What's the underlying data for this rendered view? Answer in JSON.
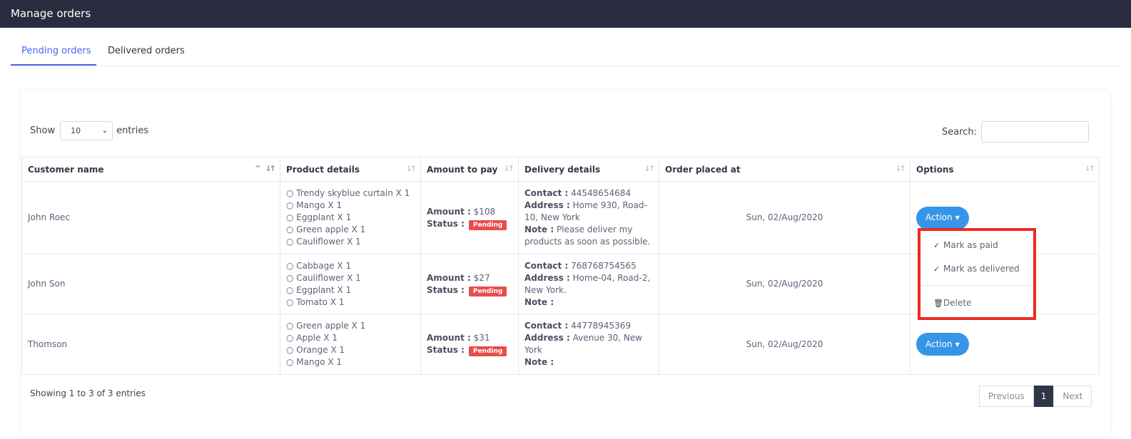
{
  "header": {
    "title": "Manage orders"
  },
  "tabs": [
    {
      "label": "Pending orders",
      "active": true
    },
    {
      "label": "Delivered orders",
      "active": false
    }
  ],
  "controls": {
    "show_label": "Show",
    "entries_value": "10",
    "entries_label": "entries",
    "search_label": "Search:"
  },
  "table": {
    "columns": [
      "Customer name",
      "Product details",
      "Amount to pay",
      "Delivery details",
      "Order placed at",
      "Options"
    ],
    "amount_label": "Amount :",
    "status_label": "Status :",
    "contact_label": "Contact :",
    "address_label": "Address :",
    "note_label": "Note :",
    "action_label": "Action",
    "rows": [
      {
        "customer": "John Roec",
        "products": [
          "○ Trendy skyblue curtain X 1",
          "○ Mango X 1",
          "○ Eggplant X 1",
          "○ Green apple X 1",
          "○ Cauliflower X 1"
        ],
        "amount": "$108",
        "status": "Pending",
        "contact": "44548654684",
        "address": "Home 930, Road-10, New York",
        "note": "Please deliver my products as soon as possible.",
        "date": "Sun, 02/Aug/2020"
      },
      {
        "customer": "John Son",
        "products": [
          "○ Cabbage X 1",
          "○ Cauliflower X 1",
          "○ Eggplant X 1",
          "○ Tomato X 1"
        ],
        "amount": "$27",
        "status": "Pending",
        "contact": "768768754565",
        "address": "Home-04, Road-2, New York.",
        "note": "",
        "date": "Sun, 02/Aug/2020"
      },
      {
        "customer": "Thomson",
        "products": [
          "○ Green apple X 1",
          "○ Apple X 1",
          "○ Orange X 1",
          "○ Mango X 1"
        ],
        "amount": "$31",
        "status": "Pending",
        "contact": "44778945369",
        "address": "Avenue 30, New York",
        "note": "",
        "date": "Sun, 02/Aug/2020"
      }
    ]
  },
  "footer": {
    "info": "Showing 1 to 3 of 3 entries",
    "prev": "Previous",
    "page": "1",
    "next": "Next"
  },
  "dropdown": {
    "items": [
      "Mark as paid",
      "Mark as delivered",
      "Delete"
    ]
  },
  "colors": {
    "accent": "#4766f5",
    "topbar": "#292c3e",
    "pending": "#ea4c4c",
    "action": "#3595e8",
    "highlight": "#ea2c20"
  }
}
